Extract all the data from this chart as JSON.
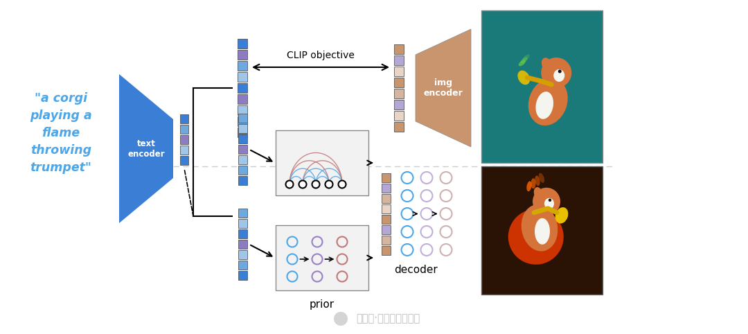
{
  "bg_color": "#ffffff",
  "text_quote": "\"a corgi\nplaying a\nflame\nthrowing\ntrumpet\"",
  "text_color_quote": "#4da6e8",
  "text_encoder_label": "text\nencoder",
  "img_encoder_label": "img\nencoder",
  "prior_label": "prior",
  "decoder_label": "decoder",
  "clip_label": "CLIP objective",
  "blue_dark": "#3a7fd5",
  "blue_mid": "#6fa8dc",
  "blue_light": "#9fc5e8",
  "purple_mid": "#8e7cc3",
  "purple_light": "#b4a7d6",
  "tan_dark": "#c9956e",
  "tan_mid": "#d5b4a0",
  "tan_light": "#e8d5c8",
  "gray_box": "#f0f0f0",
  "gray_border": "#999999",
  "arrow_color": "#222222",
  "dashed_line_color": "#aaaaaa",
  "watermark": "公众号·数据分析及应用",
  "top_img_bg": "#1a7a7a",
  "bot_img_bg": "#2a1205",
  "bot_img_circle": "#cc4400"
}
